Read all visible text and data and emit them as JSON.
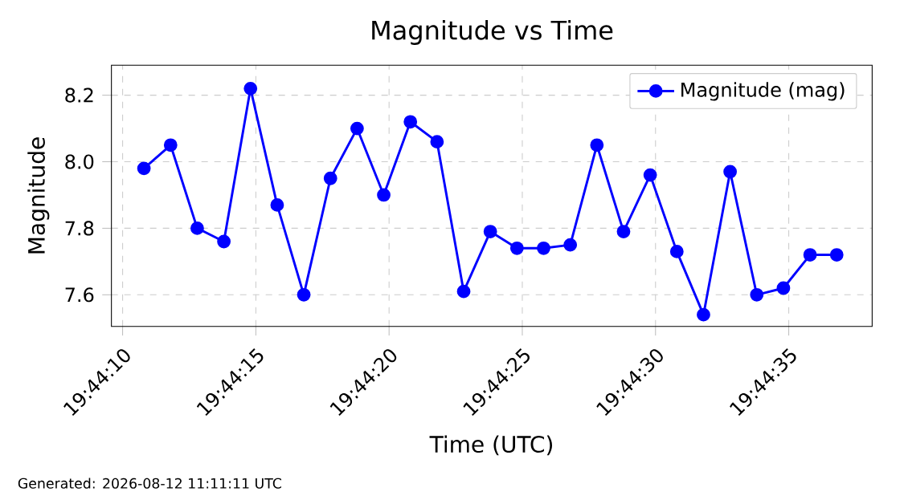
{
  "chart_data": {
    "type": "line",
    "title": "Magnitude vs Time",
    "xlabel": "Time (UTC)",
    "ylabel": "Magnitude",
    "annotations": [
      "Generated: 2026-08-12 11:11:11 UTC"
    ],
    "x": [
      19.7363333,
      19.7366111,
      19.7368889,
      19.7371667,
      19.7374444,
      19.7377222,
      19.738,
      19.7382778,
      19.7385556,
      19.7388333,
      19.7391111,
      19.7393889,
      19.7396667,
      19.7399444,
      19.7402222,
      19.7405,
      19.7407778,
      19.7410556,
      19.7413333,
      19.7416111,
      19.7418889,
      19.7421667,
      19.7424444,
      19.7427222,
      19.743,
      19.7432778,
      19.7435556
    ],
    "series": [
      {
        "name": "Magnitude (mag)",
        "color": "#0000ff",
        "values": [
          7.98,
          8.05,
          7.8,
          7.76,
          8.22,
          7.87,
          7.6,
          7.95,
          8.1,
          7.9,
          8.12,
          8.06,
          7.61,
          7.79,
          7.74,
          7.74,
          7.75,
          8.05,
          7.79,
          7.96,
          7.73,
          7.54,
          7.97,
          7.6,
          7.62,
          7.72,
          7.72
        ]
      }
    ],
    "xlim": [
      19.7359944,
      19.743925
    ],
    "xticks": [
      {
        "value": 19.7361111,
        "label": "19:44:10"
      },
      {
        "value": 19.7375,
        "label": "19:44:15"
      },
      {
        "value": 19.7388889,
        "label": "19:44:20"
      },
      {
        "value": 19.7402778,
        "label": "19:44:25"
      },
      {
        "value": 19.7416667,
        "label": "19:44:30"
      },
      {
        "value": 19.7430556,
        "label": "19:44:35"
      }
    ],
    "ylim": [
      7.505,
      8.29
    ],
    "yticks": [
      7.6,
      7.8,
      {
        "value": 8.0,
        "label": "8.0"
      },
      8.2
    ],
    "grid": true,
    "legend": "top right",
    "marker": "circle",
    "line_style": "solid"
  }
}
